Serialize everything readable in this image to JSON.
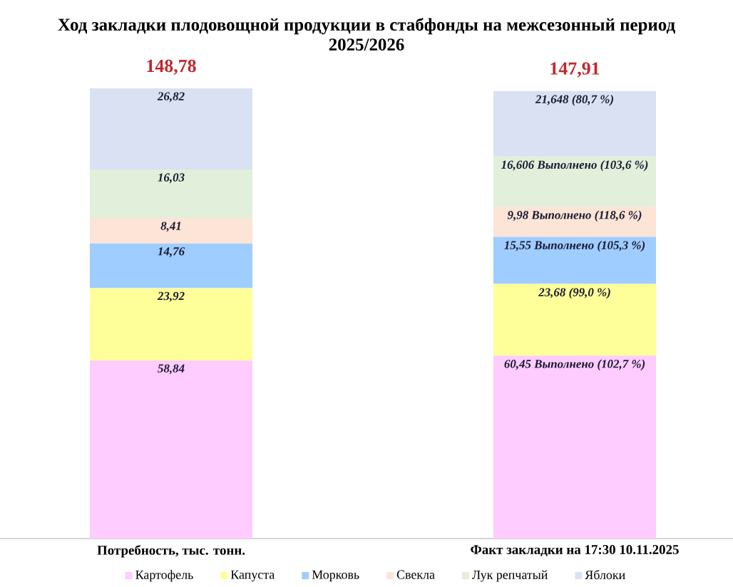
{
  "chart_data": {
    "type": "bar",
    "stacked": true,
    "title": "Ход закладки плодовощной продукции в стабфонды на межсезонный период 2025/2026",
    "categories": [
      "Потребность, тыс. тонн.",
      "Факт закладки на 17:30 10.11.2025"
    ],
    "series": [
      {
        "name": "Картофель",
        "color": "#ffccff",
        "values": [
          58.84,
          60.45
        ],
        "value_labels": [
          "58,84",
          "60,45 Выполнено (102,7 %)"
        ]
      },
      {
        "name": "Капуста",
        "color": "#ffff99",
        "values": [
          23.92,
          23.68
        ],
        "value_labels": [
          "23,92",
          "23,68 (99,0 %)"
        ]
      },
      {
        "name": "Морковь",
        "color": "#9fcdff",
        "values": [
          14.76,
          15.55
        ],
        "value_labels": [
          "14,76",
          "15,55 Выполнено (105,3 %)"
        ]
      },
      {
        "name": "Свекла",
        "color": "#fce4d6",
        "values": [
          8.41,
          9.98
        ],
        "value_labels": [
          "8,41",
          "9,98 Выполнено (118,6 %)"
        ]
      },
      {
        "name": "Лук репчатый",
        "color": "#e2efda",
        "values": [
          16.03,
          16.606
        ],
        "value_labels": [
          "16,03",
          "16,606 Выполнено (103,6 %)"
        ]
      },
      {
        "name": "Яблоки",
        "color": "#d9e1f2",
        "values": [
          26.82,
          21.648
        ],
        "value_labels": [
          "26,82",
          "21,648 (80,7 %)"
        ]
      }
    ],
    "totals": [
      "148,78",
      "147,91"
    ],
    "legend": "bottom"
  }
}
